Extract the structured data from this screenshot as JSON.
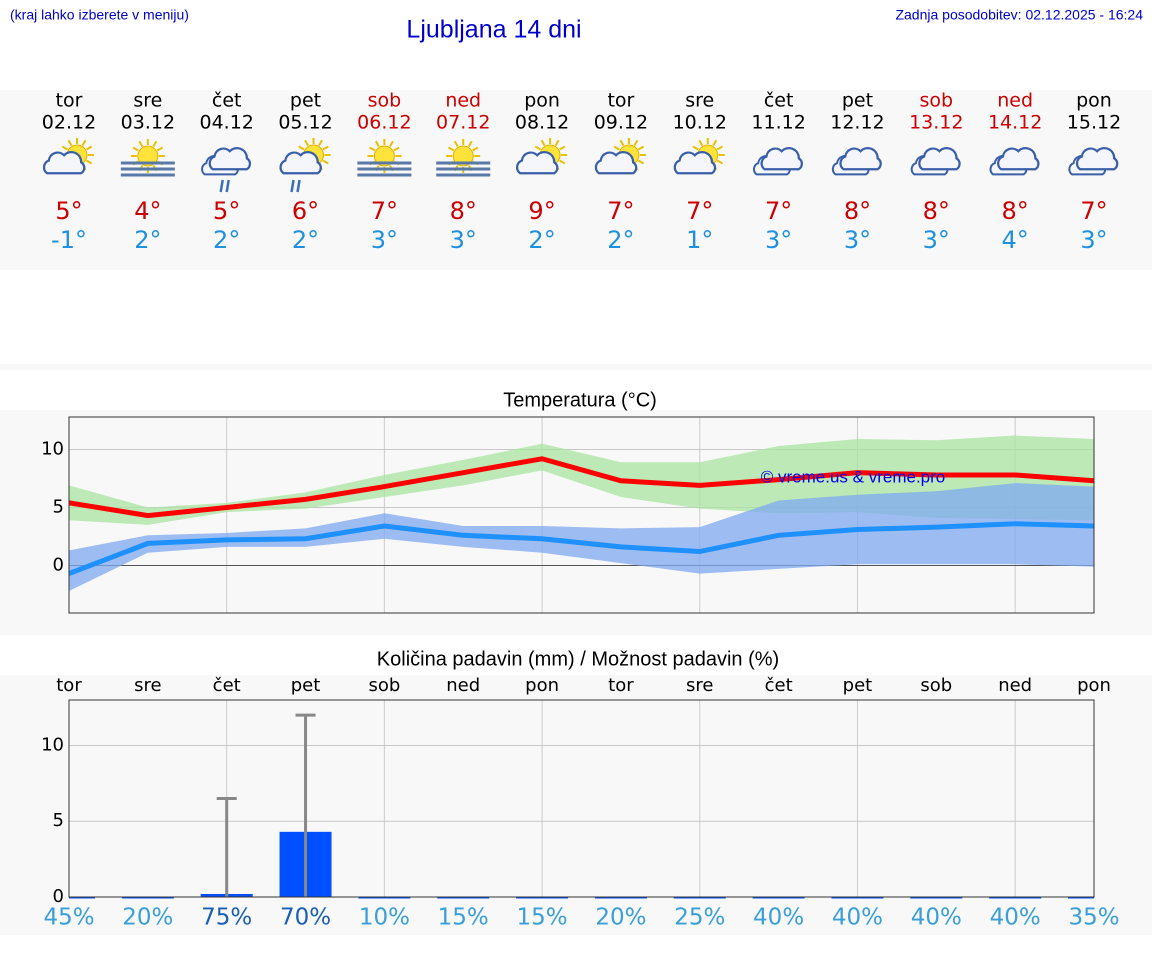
{
  "header": {
    "note": "(kraj lahko izberete v meniju)",
    "title": "Ljubljana 14 dni",
    "updated": "Zadnja posodobitev: 02.12.2025 - 16:24"
  },
  "days": [
    {
      "weekday": "tor",
      "date": "02.12",
      "max": "5°",
      "min": "-1°",
      "color": "#000000"
    },
    {
      "weekday": "sre",
      "date": "03.12",
      "max": "4°",
      "min": "2°",
      "color": "#000000"
    },
    {
      "weekday": "čet",
      "date": "04.12",
      "max": "5°",
      "min": "2°",
      "color": "#000000"
    },
    {
      "weekday": "pet",
      "date": "05.12",
      "max": "6°",
      "min": "2°",
      "color": "#000000"
    },
    {
      "weekday": "sob",
      "date": "06.12",
      "max": "7°",
      "min": "3°",
      "color": "#cc0000"
    },
    {
      "weekday": "ned",
      "date": "07.12",
      "max": "8°",
      "min": "3°",
      "color": "#cc0000"
    },
    {
      "weekday": "pon",
      "date": "08.12",
      "max": "9°",
      "min": "2°",
      "color": "#000000"
    },
    {
      "weekday": "tor",
      "date": "09.12",
      "max": "7°",
      "min": "2°",
      "color": "#000000"
    },
    {
      "weekday": "sre",
      "date": "10.12",
      "max": "7°",
      "min": "1°",
      "color": "#000000"
    },
    {
      "weekday": "čet",
      "date": "11.12",
      "max": "7°",
      "min": "3°",
      "color": "#000000"
    },
    {
      "weekday": "pet",
      "date": "12.12",
      "max": "8°",
      "min": "3°",
      "color": "#000000"
    },
    {
      "weekday": "sob",
      "date": "13.12",
      "max": "8°",
      "min": "3°",
      "color": "#cc0000"
    },
    {
      "weekday": "ned",
      "date": "14.12",
      "max": "8°",
      "min": "4°",
      "color": "#cc0000"
    },
    {
      "weekday": "pon",
      "date": "15.12",
      "max": "7°",
      "min": "3°",
      "color": "#000000"
    }
  ],
  "chart_data": [
    {
      "type": "line",
      "title": "Temperatura (°C)",
      "annotation": "© vreme.us & vreme.pro",
      "categories": [
        null,
        null,
        null,
        null,
        null,
        null,
        null,
        null,
        null,
        null,
        null,
        null,
        null,
        null
      ],
      "ylim": [
        -4.1,
        12.8
      ],
      "yticks": [
        0,
        5,
        10
      ],
      "grid": true,
      "bands": [
        {
          "color": "#a8e4a0",
          "values": [
            6.9,
            5.0,
            5.4,
            6.3,
            7.8,
            9.1,
            10.5,
            8.9,
            8.9,
            10.3,
            10.9,
            10.8,
            11.2,
            10.9
          ],
          "lower": [
            3.9,
            3.5,
            4.6,
            4.9,
            5.9,
            6.9,
            8.2,
            5.9,
            4.9,
            4.5,
            4.6,
            4.1,
            4.0,
            3.9
          ]
        },
        {
          "color": "#7fa8f0",
          "values": [
            1.3,
            2.6,
            2.8,
            3.2,
            4.5,
            3.4,
            3.4,
            3.2,
            3.3,
            5.6,
            6.1,
            6.4,
            7.1,
            6.8
          ],
          "lower": [
            -2.2,
            1.1,
            1.6,
            1.6,
            2.3,
            1.6,
            1.1,
            0.2,
            -0.7,
            -0.3,
            0.1,
            0.1,
            0.1,
            -0.1
          ]
        }
      ],
      "series": [
        {
          "color": "#ff0000",
          "values": [
            5.4,
            4.3,
            5.0,
            5.7,
            6.8,
            8.0,
            9.2,
            7.3,
            6.9,
            7.4,
            8.0,
            7.8,
            7.8,
            7.3
          ]
        },
        {
          "color": "#1e90ff",
          "values": [
            -0.7,
            1.9,
            2.2,
            2.3,
            3.4,
            2.6,
            2.3,
            1.6,
            1.2,
            2.6,
            3.1,
            3.3,
            3.6,
            3.4
          ]
        }
      ]
    },
    {
      "type": "bar",
      "title": "Količina padavin (mm) / Možnost padavin (%)",
      "categories": [
        "tor",
        "sre",
        "čet",
        "pet",
        "sob",
        "ned",
        "pon",
        "tor",
        "sre",
        "čet",
        "pet",
        "sob",
        "ned",
        "pon"
      ],
      "ylim": [
        0,
        13
      ],
      "yticks": [
        0,
        5,
        10
      ],
      "grid": true,
      "color": "#0050ff",
      "values": [
        0,
        0,
        0.2,
        4.3,
        0,
        0,
        0,
        0,
        0,
        0,
        0,
        0,
        0,
        0
      ],
      "upper": [
        null,
        null,
        6.5,
        12.0,
        null,
        null,
        null,
        null,
        null,
        null,
        null,
        null,
        null,
        null
      ],
      "chance": {
        "values": [
          45,
          20,
          75,
          70,
          10,
          15,
          15,
          20,
          25,
          40,
          40,
          40,
          40,
          35
        ],
        "value_labels": [
          "45%",
          "20%",
          "75%",
          "70%",
          "10%",
          "15%",
          "15%",
          "20%",
          "25%",
          "40%",
          "40%",
          "40%",
          "40%",
          "35%"
        ],
        "highlight": [
          false,
          false,
          true,
          true,
          false,
          false,
          false,
          false,
          false,
          false,
          false,
          false,
          false,
          false
        ]
      }
    }
  ]
}
